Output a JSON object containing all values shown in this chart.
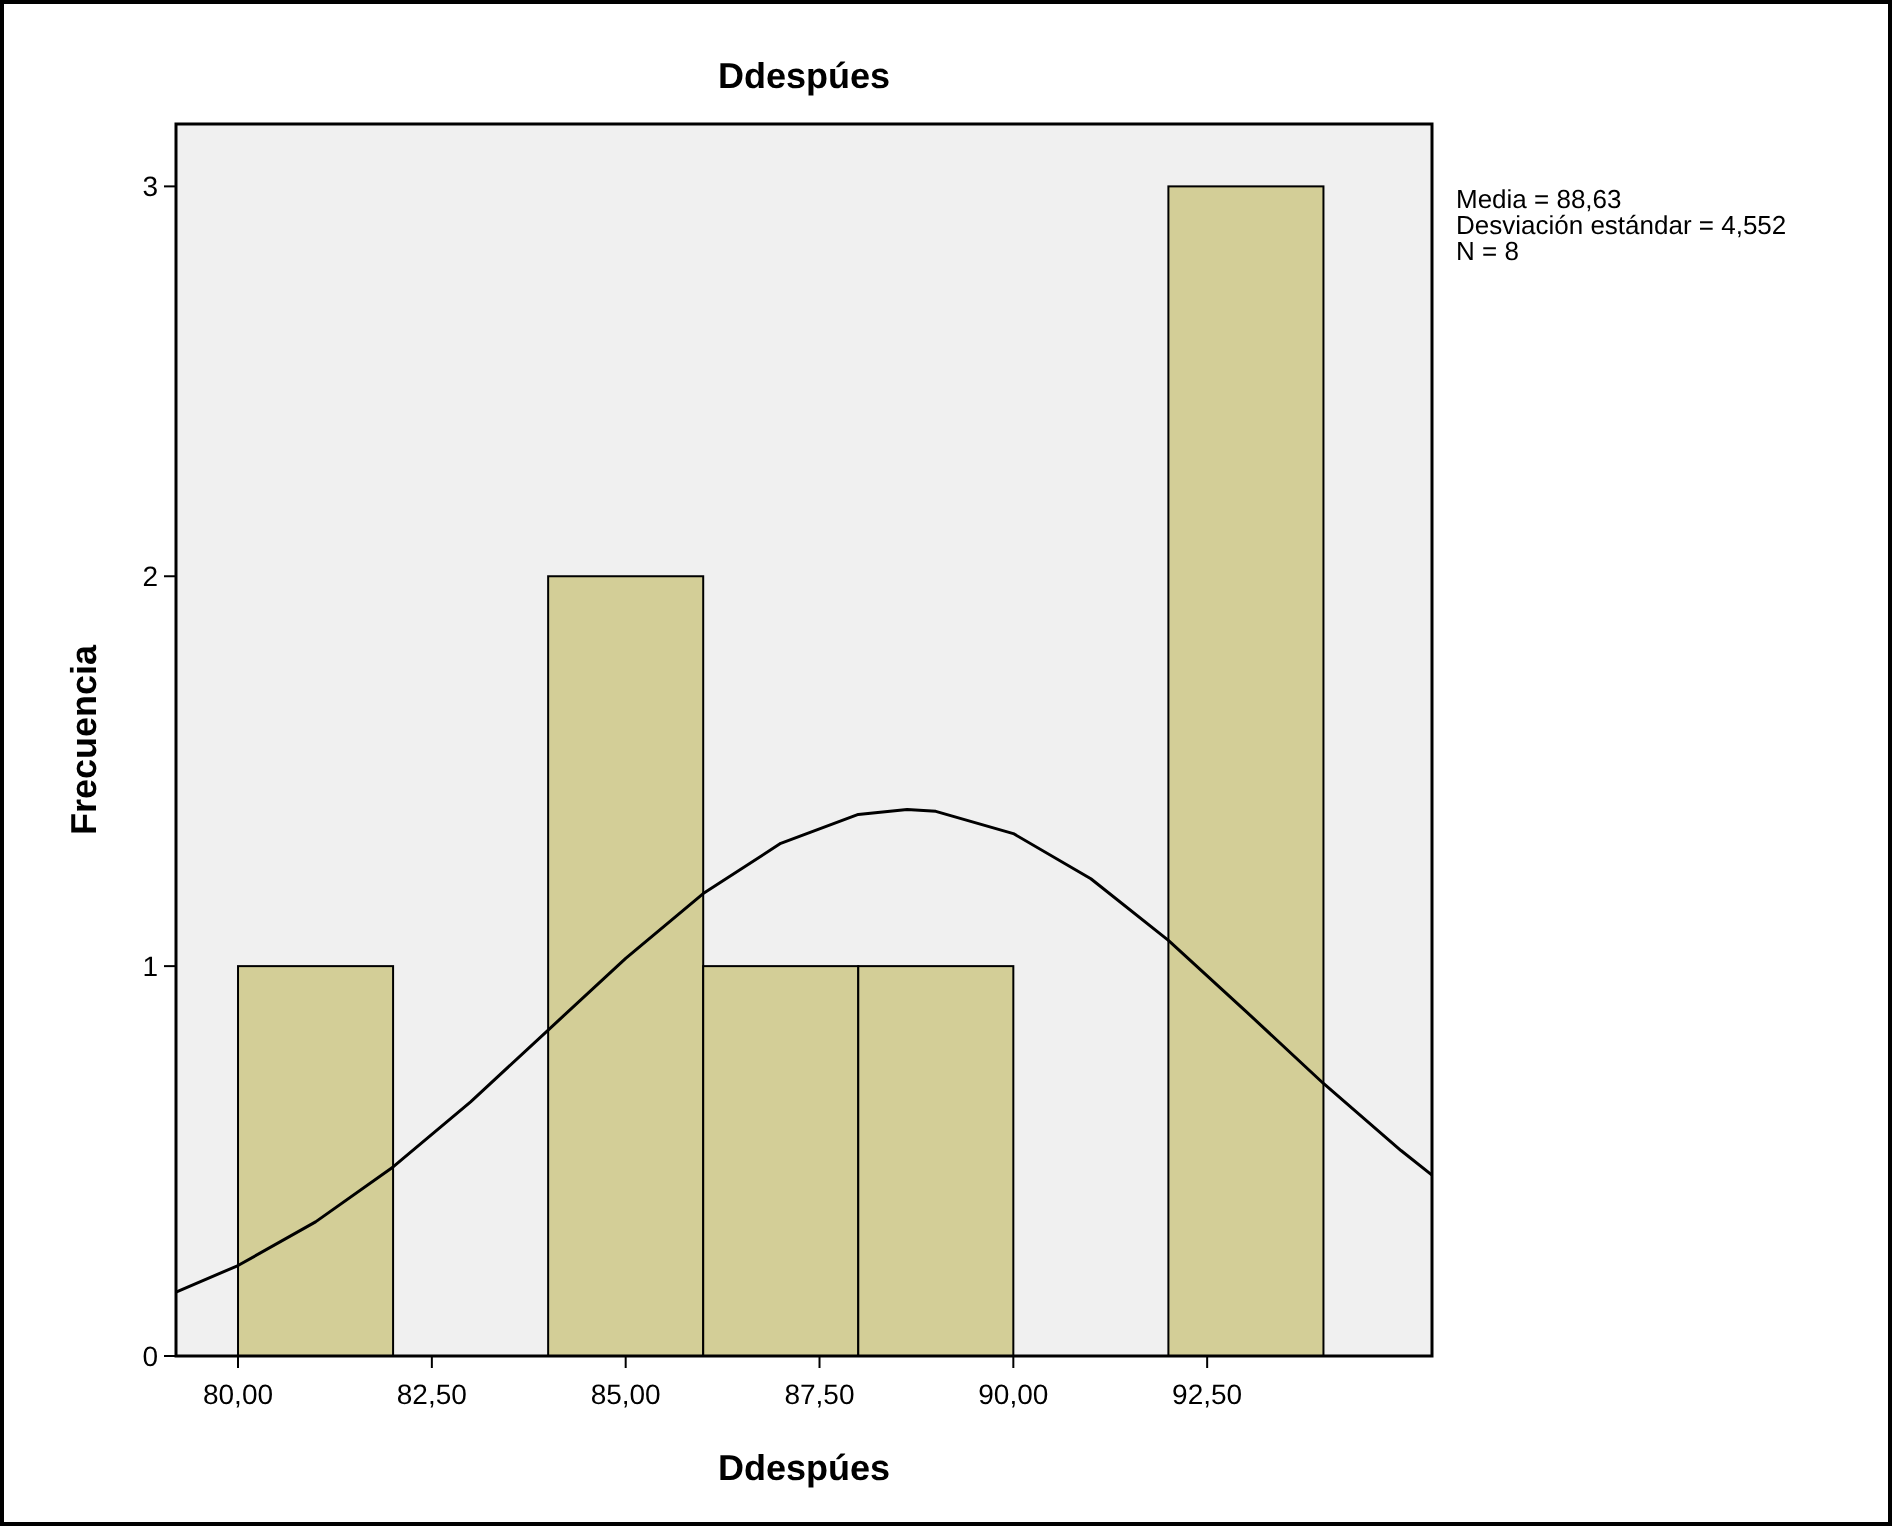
{
  "chart_data": {
    "type": "histogram",
    "title": "Ddespúes",
    "xlabel": "Ddespúes",
    "ylabel": "Frecuencia",
    "bins": [
      80,
      82,
      84,
      86,
      88,
      90,
      92,
      94
    ],
    "series": [
      {
        "color": "#d3ce97",
        "values": [
          1,
          0,
          2,
          1,
          1,
          0,
          3
        ]
      },
      {
        "type": "line",
        "color": "#000000",
        "x": [
          79.2,
          80,
          81,
          82,
          83,
          84,
          85,
          86,
          87,
          88,
          88.63,
          89,
          90,
          91,
          92,
          93,
          94,
          95,
          95.4
        ],
        "values": [
          0.164,
          0.232,
          0.344,
          0.485,
          0.652,
          0.836,
          1.02,
          1.186,
          1.315,
          1.389,
          1.402,
          1.397,
          1.34,
          1.224,
          1.066,
          0.884,
          0.699,
          0.527,
          0.464
        ]
      }
    ],
    "xlim": [
      79.2,
      95.4
    ],
    "ylim": [
      0,
      3.16
    ],
    "xticks": [
      {
        "value": 80,
        "label": "80,00"
      },
      {
        "value": 82.5,
        "label": "82,50"
      },
      {
        "value": 85,
        "label": "85,00"
      },
      {
        "value": 87.5,
        "label": "87,50"
      },
      {
        "value": 90,
        "label": "90,00"
      },
      {
        "value": 92.5,
        "label": "92,50"
      }
    ],
    "yticks": [
      0,
      1,
      2,
      3
    ],
    "grid": false,
    "marker": "none",
    "line_style": "solid",
    "annotations": [
      "Media = 88,63",
      "Desviación estándar = 4,552",
      "N = 8"
    ]
  }
}
